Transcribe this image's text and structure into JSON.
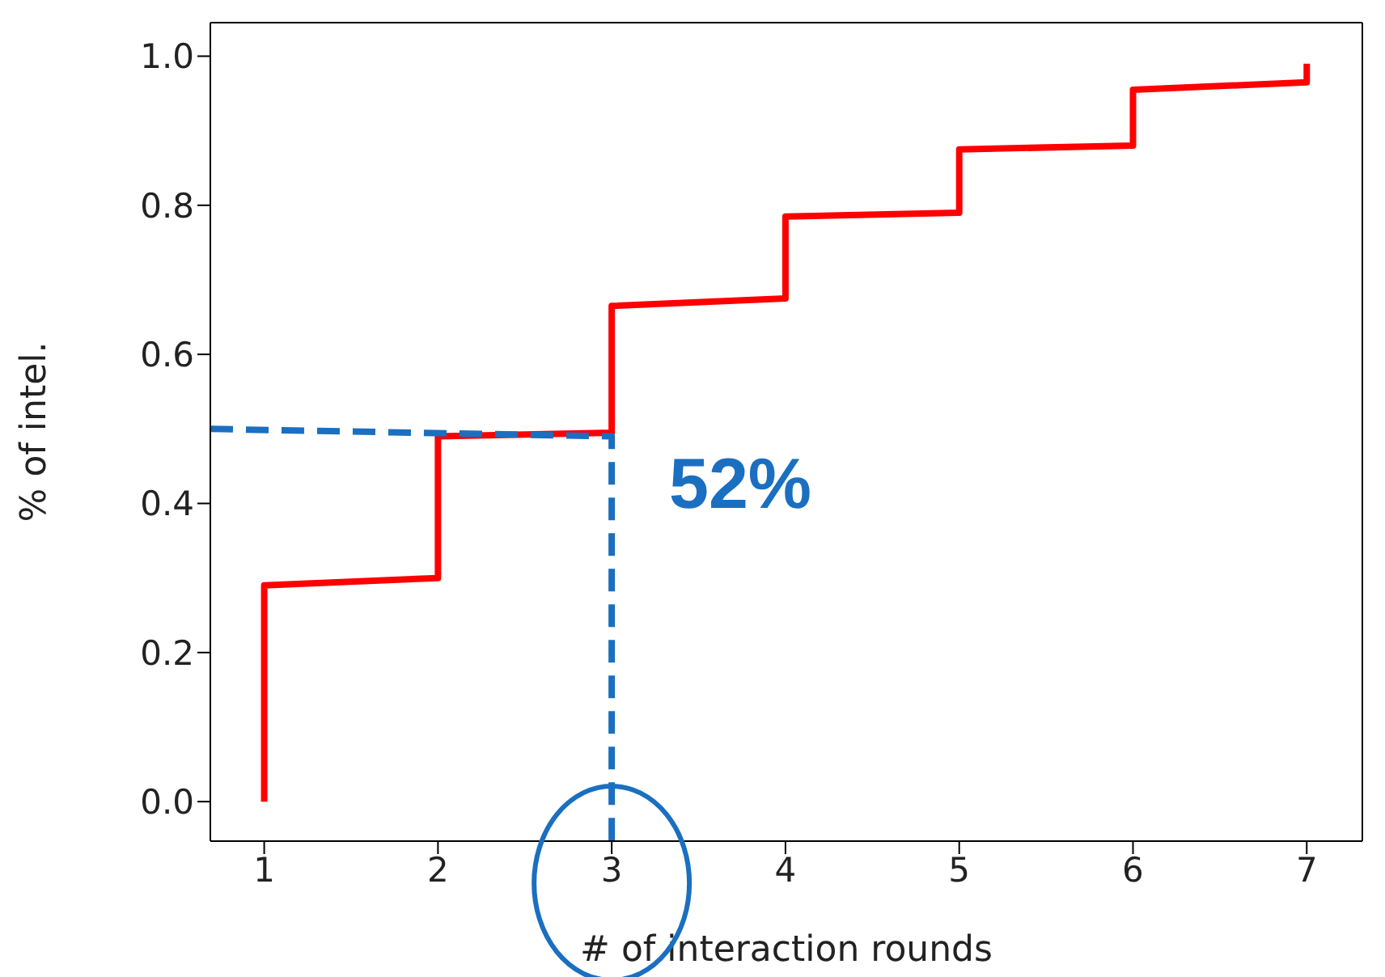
{
  "chart_data": {
    "type": "line",
    "xlabel": "# of interaction rounds",
    "ylabel": "% of intel.",
    "xlim": [
      0.69,
      7.32
    ],
    "ylim": [
      -0.053,
      1.045
    ],
    "xticks": [
      1,
      2,
      3,
      4,
      5,
      6,
      7
    ],
    "yticks": [
      {
        "value": 0,
        "label": "0.0"
      },
      {
        "value": 0.2,
        "label": "0.2"
      },
      {
        "value": 0.4,
        "label": "0.4"
      },
      {
        "value": 0.6,
        "label": "0.6"
      },
      {
        "value": 0.8,
        "label": "0.8"
      },
      {
        "value": 1,
        "label": "1.0"
      }
    ],
    "marker": "none",
    "series": [
      {
        "color": "#ff0000",
        "line_style": "solid",
        "x": [
          1,
          1,
          2,
          2,
          3,
          3,
          4,
          4,
          5,
          5,
          6,
          6,
          7,
          7
        ],
        "values": [
          0,
          0.29,
          0.3,
          0.49,
          0.495,
          0.665,
          0.675,
          0.785,
          0.79,
          0.875,
          0.88,
          0.955,
          0.965,
          0.99
        ]
      },
      {
        "color": "#1a6fc0",
        "line_style": "dashed",
        "x": [
          0.69,
          3,
          3
        ],
        "values": [
          0.5,
          0.49,
          -0.053
        ]
      }
    ],
    "annotations": [
      "52%"
    ]
  }
}
